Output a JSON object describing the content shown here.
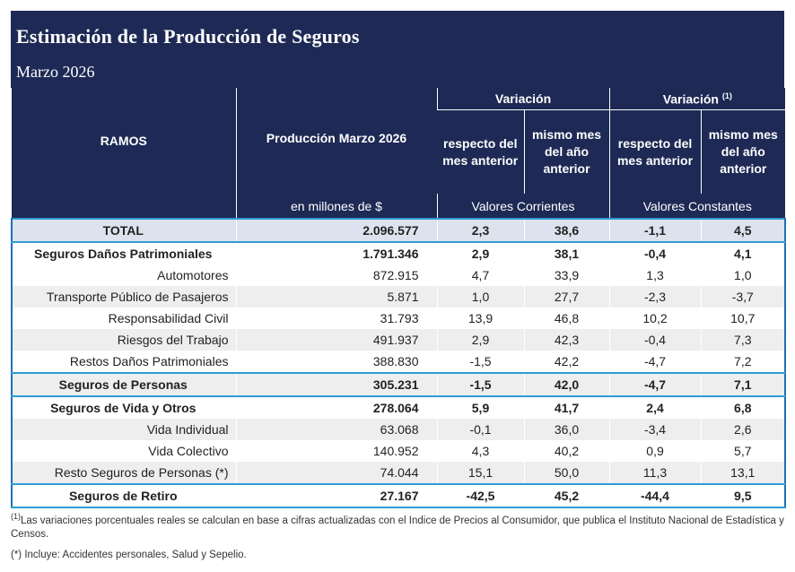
{
  "header": {
    "title": "Estimación de la Producción de Seguros",
    "subtitle": "Marzo 2026"
  },
  "columns": {
    "ramos": "RAMOS",
    "produccion": "Producción Marzo 2026",
    "variacion": "Variación",
    "variacion_real": "Variación",
    "variacion_real_sup": "(1)",
    "resp_mes_anterior": "respecto del mes anterior",
    "mismo_mes": "mismo mes del año anterior",
    "resp_mes_anterior_2": "respecto del mes anterior",
    "mismo_mes_2": "mismo mes del año anterior",
    "unidad": "en millones de $",
    "valores_corrientes": "Valores Corrientes",
    "valores_constantes": "Valores Constantes"
  },
  "rows": [
    {
      "name": "TOTAL",
      "prod": "2.096.577",
      "v1": "2,3",
      "v2": "38,6",
      "v3": "-1,1",
      "v4": "4,5"
    },
    {
      "name": "Seguros Daños Patrimoniales",
      "prod": "1.791.346",
      "v1": "2,9",
      "v2": "38,1",
      "v3": "-0,4",
      "v4": "4,1"
    },
    {
      "name": "Automotores",
      "prod": "872.915",
      "v1": "4,7",
      "v2": "33,9",
      "v3": "1,3",
      "v4": "1,0"
    },
    {
      "name": "Transporte Público de Pasajeros",
      "prod": "5.871",
      "v1": "1,0",
      "v2": "27,7",
      "v3": "-2,3",
      "v4": "-3,7"
    },
    {
      "name": "Responsabilidad Civil",
      "prod": "31.793",
      "v1": "13,9",
      "v2": "46,8",
      "v3": "10,2",
      "v4": "10,7"
    },
    {
      "name": "Riesgos del Trabajo",
      "prod": "491.937",
      "v1": "2,9",
      "v2": "42,3",
      "v3": "-0,4",
      "v4": "7,3"
    },
    {
      "name": "Restos Daños Patrimoniales",
      "prod": "388.830",
      "v1": "-1,5",
      "v2": "42,2",
      "v3": "-4,7",
      "v4": "7,2"
    },
    {
      "name": "Seguros de Personas",
      "prod": "305.231",
      "v1": "-1,5",
      "v2": "42,0",
      "v3": "-4,7",
      "v4": "7,1"
    },
    {
      "name": "Seguros de Vida y Otros",
      "prod": "278.064",
      "v1": "5,9",
      "v2": "41,7",
      "v3": "2,4",
      "v4": "6,8"
    },
    {
      "name": "Vida Individual",
      "prod": "63.068",
      "v1": "-0,1",
      "v2": "36,0",
      "v3": "-3,4",
      "v4": "2,6"
    },
    {
      "name": "Vida Colectivo",
      "prod": "140.952",
      "v1": "4,3",
      "v2": "40,2",
      "v3": "0,9",
      "v4": "5,7"
    },
    {
      "name": "Resto Seguros de Personas (*)",
      "prod": "74.044",
      "v1": "15,1",
      "v2": "50,0",
      "v3": "11,3",
      "v4": "13,1"
    },
    {
      "name": "Seguros de Retiro",
      "prod": "27.167",
      "v1": "-42,5",
      "v2": "45,2",
      "v3": "-44,4",
      "v4": "9,5"
    }
  ],
  "notes": {
    "note1_sup": "(1)",
    "note1": "Las variaciones porcentuales reales se calculan en base a cifras actualizadas con  el Indice de Precios al Consumidor, que publica el Instituto Nacional de Estadística y  Censos.",
    "note2": "(*) Incluye: Accidentes personales, Salud y Sepelio."
  }
}
